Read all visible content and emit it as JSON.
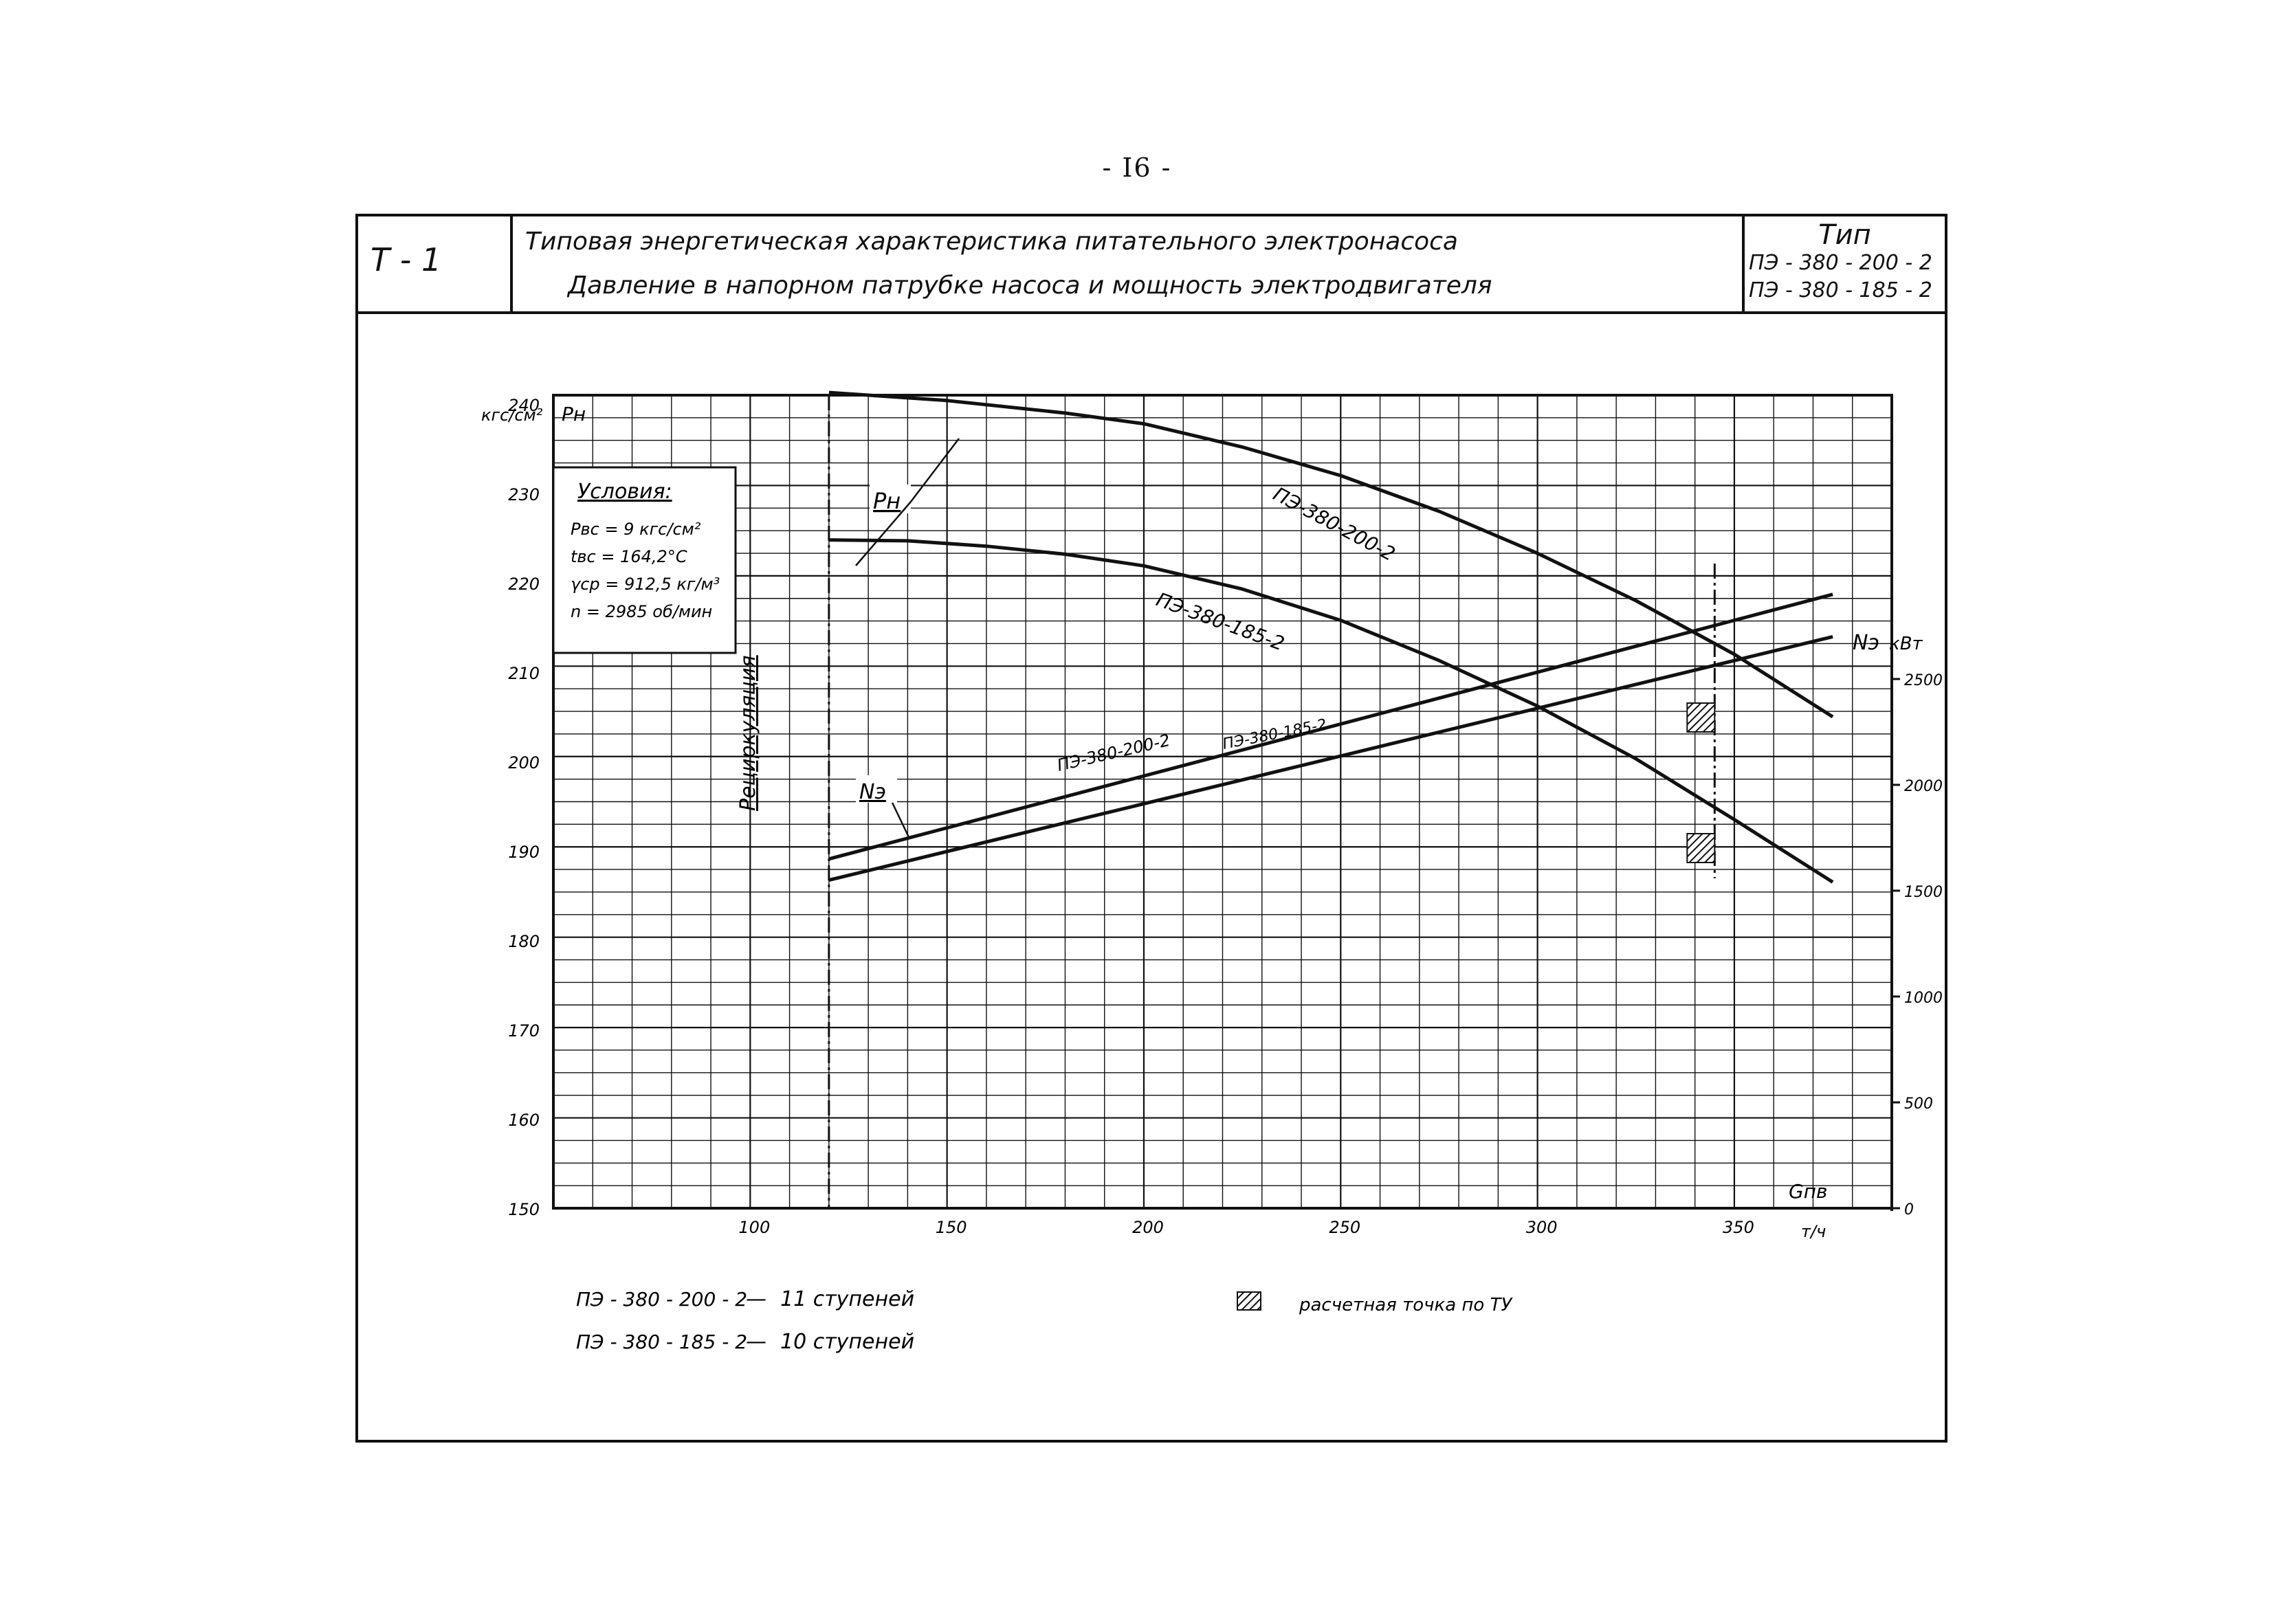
{
  "page": {
    "number": "- I6 -"
  },
  "header": {
    "code": "Т - 1",
    "title_line1": "Типовая энергетическая характеристика питательного электронасоса",
    "title_line2": "Давление в напорном патрубке насоса и мощность электродвигателя",
    "type_label": "Тип",
    "models": [
      "ПЭ - 380 - 200 - 2",
      "ПЭ - 380 - 185 - 2"
    ]
  },
  "conditions": {
    "heading": "Условия:",
    "lines": [
      "Pвс = 9 кгс/см²",
      "tвс = 164,2°C",
      "γср = 912,5 кг/м³",
      "n = 2985 об/мин"
    ]
  },
  "recirculation_label": "Рециркуляция",
  "legend": {
    "stages": [
      {
        "model": "ПЭ - 380 - 200 - 2",
        "dash": "—",
        "text": "11 ступеней"
      },
      {
        "model": "ПЭ - 380 - 185 - 2",
        "dash": "—",
        "text": "10 ступеней"
      }
    ],
    "design_point": "расчетная точка по ТУ"
  },
  "chart_data": {
    "type": "line",
    "x_axis": {
      "label": "Gпв",
      "unit": "т/ч",
      "range": [
        50,
        390
      ],
      "tick_labels": [
        "100",
        "150",
        "200",
        "250",
        "300",
        "350"
      ],
      "ticks": [
        100,
        150,
        200,
        250,
        300,
        350
      ]
    },
    "y_left": {
      "label": "Pн",
      "unit": "кгс/см²",
      "range": [
        150,
        241
      ],
      "tick_labels": [
        "150",
        "160",
        "170",
        "180",
        "190",
        "200",
        "210",
        "220",
        "230",
        "240"
      ],
      "ticks": [
        150,
        160,
        170,
        180,
        190,
        200,
        210,
        220,
        230,
        240
      ]
    },
    "y_right": {
      "label": "Nэ",
      "unit": "кВт",
      "range": [
        0,
        2500
      ],
      "tick_labels": [
        "0",
        "500",
        "1000",
        "1500",
        "2000",
        "2500"
      ],
      "ticks": [
        0,
        500,
        1000,
        1500,
        2000,
        2500
      ]
    },
    "recirculation_x": 120,
    "design_point_x": 345,
    "series": [
      {
        "name": "ПЭ-380-200-2",
        "quantity": "Pн",
        "axis": "left",
        "color": "#111111",
        "x": [
          120,
          150,
          180,
          200,
          225,
          250,
          275,
          300,
          325,
          350,
          375
        ],
        "y": [
          241.3,
          240.4,
          239,
          237.8,
          235.2,
          232.0,
          228.0,
          223.3,
          218.0,
          212.0,
          205.0
        ]
      },
      {
        "name": "ПЭ-380-185-2",
        "quantity": "Pн",
        "axis": "left",
        "color": "#111111",
        "x": [
          120,
          140,
          160,
          180,
          200,
          225,
          250,
          275,
          300,
          325,
          350,
          375
        ],
        "y": [
          224.8,
          224.7,
          224.1,
          223.2,
          221.9,
          219.3,
          215.8,
          211.3,
          206.2,
          200.3,
          193.5,
          186.5
        ]
      },
      {
        "name": "ПЭ-380-200-2",
        "quantity": "Nэ",
        "axis": "right",
        "color": "#111111",
        "x": [
          120,
          375
        ],
        "y": [
          1650,
          2900
        ]
      },
      {
        "name": "ПЭ-380-185-2",
        "quantity": "Nэ",
        "axis": "right",
        "color": "#111111",
        "x": [
          120,
          375
        ],
        "y": [
          1550,
          2700
        ]
      }
    ],
    "annotations": [
      "Pн",
      "Nэ",
      "ПЭ-380-200-2",
      "ПЭ-380-185-2"
    ]
  }
}
